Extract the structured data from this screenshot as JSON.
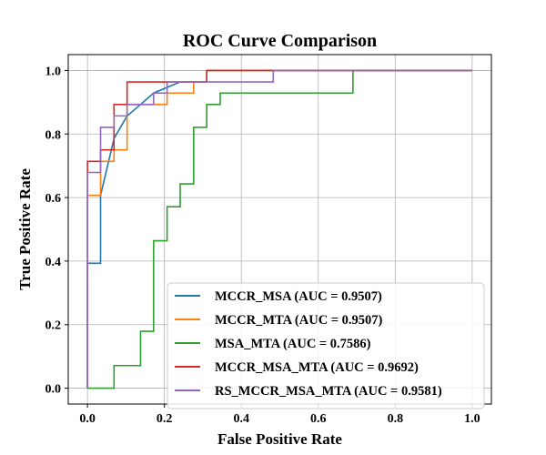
{
  "chart_data": {
    "type": "line",
    "title": "ROC Curve Comparison",
    "xlabel": "False Positive Rate",
    "ylabel": "True Positive Rate",
    "xlim": [
      -0.05,
      1.05
    ],
    "ylim": [
      -0.05,
      1.05
    ],
    "xticks": [
      "0.0",
      "0.2",
      "0.4",
      "0.6",
      "0.8",
      "1.0"
    ],
    "yticks": [
      "0.0",
      "0.2",
      "0.4",
      "0.6",
      "0.8",
      "1.0"
    ],
    "grid": true,
    "legend_position": "lower-right",
    "series": [
      {
        "name": "MCCR_MSA (AUC = 0.9507)",
        "color": "#1f77b4",
        "x": [
          0,
          0,
          0.034,
          0.034,
          0.069,
          0.069,
          0.103,
          0.103,
          0.138,
          0.138,
          0.172,
          0.172,
          0.241,
          0.241,
          0.31,
          0.31,
          1.0
        ],
        "y": [
          0,
          0.393,
          0.393,
          0.607,
          0.786,
          0.786,
          0.857,
          0.857,
          0.893,
          0.893,
          0.929,
          0.929,
          0.964,
          0.964,
          0.964,
          1.0,
          1.0
        ]
      },
      {
        "name": "MCCR_MTA (AUC = 0.9507)",
        "color": "#ff7f0e",
        "x": [
          0,
          0,
          0.034,
          0.034,
          0.034,
          0.069,
          0.069,
          0.103,
          0.103,
          0.207,
          0.207,
          0.276,
          0.276,
          0.31,
          0.31,
          1.0
        ],
        "y": [
          0,
          0.607,
          0.607,
          0.679,
          0.714,
          0.714,
          0.75,
          0.75,
          0.893,
          0.893,
          0.929,
          0.929,
          0.964,
          0.964,
          1.0,
          1.0
        ]
      },
      {
        "name": "MSA_MTA (AUC = 0.7586)",
        "color": "#2ca02c",
        "x": [
          0,
          0,
          0.069,
          0.069,
          0.138,
          0.138,
          0.172,
          0.172,
          0.207,
          0.207,
          0.241,
          0.241,
          0.276,
          0.276,
          0.31,
          0.31,
          0.345,
          0.345,
          0.69,
          0.69,
          1.0
        ],
        "y": [
          0,
          0,
          0,
          0.071,
          0.071,
          0.179,
          0.179,
          0.464,
          0.464,
          0.571,
          0.571,
          0.643,
          0.643,
          0.821,
          0.821,
          0.893,
          0.893,
          0.929,
          0.929,
          1.0,
          1.0
        ]
      },
      {
        "name": "MCCR_MSA_MTA (AUC = 0.9692)",
        "color": "#d62728",
        "x": [
          0,
          0,
          0.034,
          0.034,
          0.069,
          0.069,
          0.103,
          0.103,
          0.31,
          0.31,
          1.0
        ],
        "y": [
          0,
          0.714,
          0.714,
          0.75,
          0.75,
          0.893,
          0.893,
          0.964,
          0.964,
          1.0,
          1.0
        ]
      },
      {
        "name": "RS_MCCR_MSA_MTA (AUC = 0.9581)",
        "color": "#9467bd",
        "x": [
          0,
          0,
          0.034,
          0.034,
          0.069,
          0.069,
          0.103,
          0.103,
          0.172,
          0.172,
          0.207,
          0.207,
          0.483,
          0.483,
          1.0
        ],
        "y": [
          0,
          0.679,
          0.679,
          0.821,
          0.821,
          0.857,
          0.857,
          0.893,
          0.893,
          0.929,
          0.929,
          0.964,
          0.964,
          1.0,
          1.0
        ]
      }
    ]
  }
}
